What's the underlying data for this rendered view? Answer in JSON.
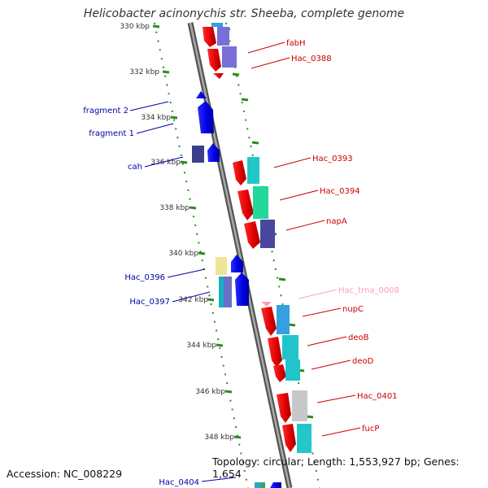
{
  "title": "Helicobacter acinonychis str. Sheeba, complete genome",
  "footer": {
    "accession": "Accession: NC_008229",
    "topology": "Topology: circular; Length: 1,553,927 bp; Genes: 1,654"
  },
  "colors": {
    "backbone": "#8a8a8a",
    "tick_ruler": "#2e8b22",
    "forward_label": "#cc0000",
    "reverse_label": "#0000aa",
    "trna_label": "#ff99cc",
    "cds": "#ee0000",
    "cds_reverse": "#0000ee"
  },
  "ruler_labels": [
    "330 kbp",
    "332 kbp",
    "334 kbp",
    "336 kbp",
    "338 kbp",
    "340 kbp",
    "342 kbp",
    "344 kbp",
    "346 kbp",
    "348 kbp"
  ],
  "forward_genes": [
    "fabH",
    "Hac_0388",
    "Hac_0393",
    "Hac_0394",
    "napA",
    "Hac_trna_0008",
    "nupC",
    "deoB",
    "deoD",
    "Hac_0401",
    "fucP"
  ],
  "reverse_genes": [
    "fragment 2",
    "fragment 1",
    "cah",
    "Hac_0396",
    "Hac_0397",
    "Hac_0404"
  ]
}
